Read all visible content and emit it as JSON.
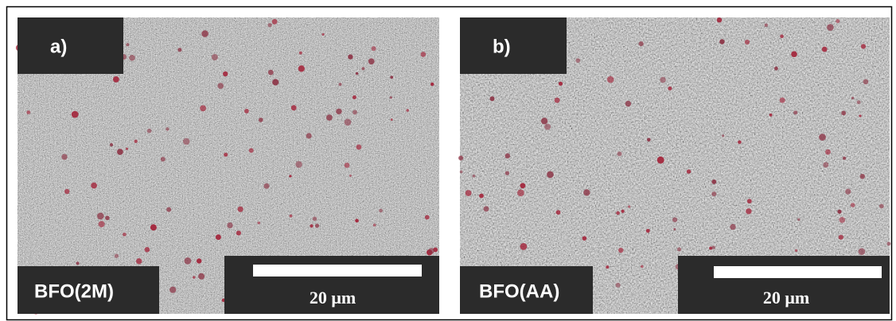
{
  "panels": [
    {
      "label": "a)",
      "sample": "BFO(2M)",
      "scale": "20 μm"
    },
    {
      "label": "b)",
      "sample": "BFO(AA)",
      "scale": "20 μm"
    }
  ]
}
